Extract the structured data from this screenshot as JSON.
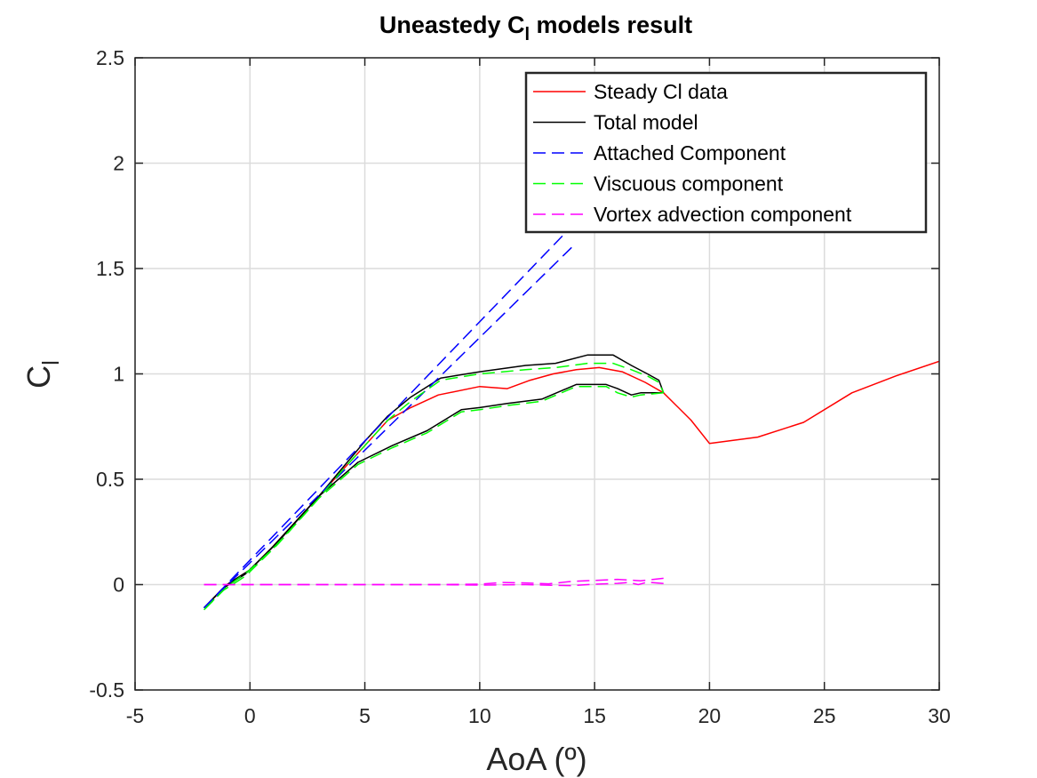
{
  "chart_data": {
    "type": "line",
    "title": "Uneastedy C",
    "title_subscript": "l",
    "title_suffix": " models result",
    "xlabel": "AoA (º)",
    "ylabel": "C",
    "ylabel_subscript": "l",
    "xlim": [
      -5,
      30
    ],
    "ylim": [
      -0.5,
      2.5
    ],
    "xticks": [
      -5,
      0,
      5,
      10,
      15,
      20,
      25,
      30
    ],
    "yticks": [
      -0.5,
      0,
      0.5,
      1,
      1.5,
      2,
      2.5
    ],
    "xtick_labels": [
      "-5",
      "0",
      "5",
      "10",
      "15",
      "20",
      "25",
      "30"
    ],
    "ytick_labels": [
      "-0.5",
      "0",
      "0.5",
      "1",
      "1.5",
      "2",
      "2.5"
    ],
    "grid": true,
    "legend_position": "top-right",
    "series": [
      {
        "name": "Steady Cl data",
        "color": "#ff0000",
        "dash": "solid",
        "x": [
          -2,
          -1,
          0,
          1,
          2,
          3,
          4,
          5,
          6,
          7,
          8.2,
          10,
          11.2,
          12.2,
          13.2,
          14.2,
          15.2,
          16.2,
          17.2,
          18,
          19.2,
          20,
          22.1,
          24.1,
          26.2,
          28.1,
          30
        ],
        "y": [
          -0.11,
          0.0,
          0.07,
          0.18,
          0.3,
          0.42,
          0.54,
          0.66,
          0.78,
          0.84,
          0.9,
          0.94,
          0.93,
          0.97,
          1.0,
          1.02,
          1.03,
          1.01,
          0.96,
          0.91,
          0.78,
          0.67,
          0.7,
          0.77,
          0.91,
          0.99,
          1.06
        ]
      },
      {
        "name": "Total model",
        "color": "#000000",
        "dash": "solid",
        "loops": [
          {
            "x": [
              -2,
              -1,
              0,
              1,
              2,
              3,
              4,
              5,
              6,
              7,
              8.3,
              10,
              12,
              13.3,
              14.7,
              15.8,
              16.6,
              17.3,
              17.8,
              18
            ],
            "y": [
              -0.11,
              0.0,
              0.07,
              0.18,
              0.3,
              0.42,
              0.55,
              0.68,
              0.8,
              0.89,
              0.98,
              1.01,
              1.04,
              1.05,
              1.09,
              1.09,
              1.04,
              1.0,
              0.97,
              0.91
            ]
          },
          {
            "x": [
              18,
              17,
              16.6,
              16,
              15.5,
              14.2,
              12.7,
              11.2,
              10,
              9.2,
              7.7,
              6.2,
              4.7,
              3,
              1.2,
              -0.2,
              -1.2,
              -2
            ],
            "y": [
              0.91,
              0.91,
              0.9,
              0.93,
              0.95,
              0.95,
              0.88,
              0.86,
              0.84,
              0.83,
              0.73,
              0.66,
              0.58,
              0.42,
              0.2,
              0.05,
              -0.02,
              -0.11
            ]
          }
        ]
      },
      {
        "name": "Attached Component",
        "color": "#0000ff",
        "dash": "dashed",
        "loops": [
          {
            "x": [
              -2,
              14
            ],
            "y": [
              -0.11,
              1.7
            ]
          },
          {
            "x": [
              14,
              -2
            ],
            "y": [
              1.6,
              -0.11
            ]
          }
        ]
      },
      {
        "name": "Viscuous component",
        "color": "#00ff00",
        "dash": "dashed",
        "loops": [
          {
            "x": [
              -2,
              -1,
              0,
              1,
              2,
              3,
              4,
              5,
              6,
              7,
              8.3,
              10,
              12,
              13.3,
              14.7,
              15.8,
              16.6,
              17.3,
              17.8,
              18
            ],
            "y": [
              -0.12,
              -0.01,
              0.07,
              0.17,
              0.29,
              0.41,
              0.54,
              0.66,
              0.78,
              0.87,
              0.97,
              1.0,
              1.02,
              1.03,
              1.05,
              1.05,
              1.02,
              0.99,
              0.96,
              0.91
            ]
          },
          {
            "x": [
              18,
              17,
              16.6,
              16,
              15.5,
              14.2,
              12.7,
              11.2,
              10,
              9.2,
              7.7,
              6.2,
              4.7,
              3,
              1.2,
              -0.2,
              -1.2,
              -2
            ],
            "y": [
              0.91,
              0.9,
              0.89,
              0.91,
              0.94,
              0.94,
              0.87,
              0.85,
              0.83,
              0.82,
              0.72,
              0.65,
              0.57,
              0.41,
              0.19,
              0.04,
              -0.03,
              -0.12
            ]
          }
        ]
      },
      {
        "name": "Vortex advection component",
        "color": "#ff00ff",
        "dash": "dashed",
        "loops": [
          {
            "x": [
              -2,
              0,
              4,
              8,
              10,
              11,
              12,
              13,
              14,
              15,
              16,
              17,
              18
            ],
            "y": [
              0,
              0,
              0,
              0,
              0.002,
              0.01,
              0.008,
              0.004,
              0.015,
              0.02,
              0.025,
              0.018,
              0.03
            ]
          },
          {
            "x": [
              18,
              17.3,
              16.9,
              16.5,
              16,
              15,
              14,
              12,
              10,
              8,
              4,
              0,
              -2
            ],
            "y": [
              0.005,
              0.012,
              0.0,
              0.01,
              0.006,
              0.002,
              -0.005,
              0.0,
              -0.002,
              0.0,
              0.0,
              0.0,
              0.0
            ]
          }
        ]
      }
    ]
  }
}
